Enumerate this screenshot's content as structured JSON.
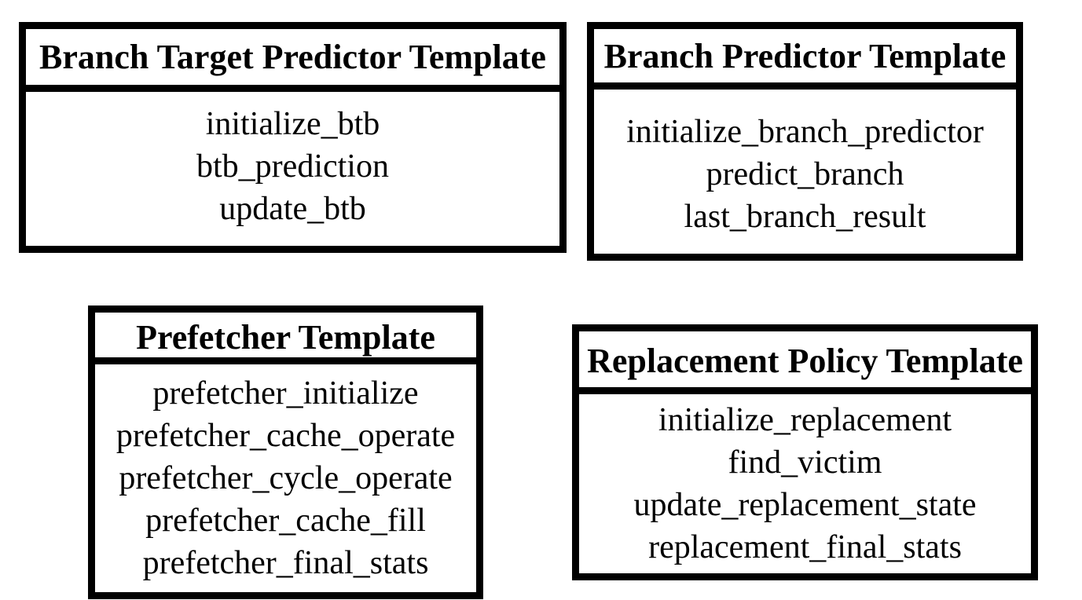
{
  "templates": {
    "branch_target_predictor": {
      "title": "Branch Target Predictor Template",
      "methods": [
        "initialize_btb",
        "btb_prediction",
        "update_btb"
      ]
    },
    "branch_predictor": {
      "title": "Branch Predictor Template",
      "methods": [
        "initialize_branch_predictor",
        "predict_branch",
        "last_branch_result"
      ]
    },
    "prefetcher": {
      "title": "Prefetcher Template",
      "methods": [
        "prefetcher_initialize",
        "prefetcher_cache_operate",
        "prefetcher_cycle_operate",
        "prefetcher_cache_fill",
        "prefetcher_final_stats"
      ]
    },
    "replacement_policy": {
      "title": "Replacement Policy Template",
      "methods": [
        "initialize_replacement",
        "find_victim",
        "update_replacement_state",
        "replacement_final_stats"
      ]
    }
  }
}
